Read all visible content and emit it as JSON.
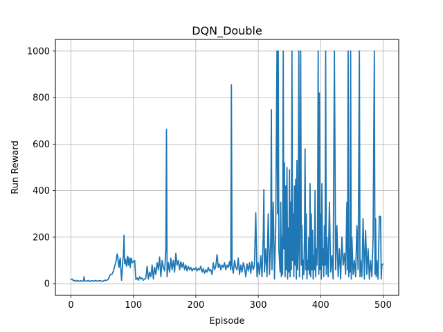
{
  "chart_data": {
    "type": "line",
    "title": "DQN_Double",
    "xlabel": "Episode",
    "ylabel": "Run Reward",
    "xlim": [
      -25,
      525
    ],
    "ylim": [
      -50,
      1050
    ],
    "x_ticks": [
      0,
      100,
      200,
      300,
      400,
      500
    ],
    "y_ticks": [
      0,
      200,
      400,
      600,
      800,
      1000
    ],
    "grid": true,
    "series": [
      {
        "color": "#1f77b4",
        "points": [
          [
            0,
            18
          ],
          [
            2,
            20
          ],
          [
            4,
            12
          ],
          [
            6,
            15
          ],
          [
            8,
            10
          ],
          [
            10,
            14
          ],
          [
            12,
            12
          ],
          [
            14,
            10
          ],
          [
            16,
            13
          ],
          [
            18,
            11
          ],
          [
            20,
            12
          ],
          [
            21,
            30
          ],
          [
            22,
            12
          ],
          [
            25,
            11
          ],
          [
            28,
            14
          ],
          [
            30,
            10
          ],
          [
            33,
            13
          ],
          [
            36,
            11
          ],
          [
            39,
            14
          ],
          [
            42,
            11
          ],
          [
            45,
            13
          ],
          [
            48,
            12
          ],
          [
            51,
            10
          ],
          [
            54,
            15
          ],
          [
            57,
            14
          ],
          [
            60,
            20
          ],
          [
            62,
            35
          ],
          [
            64,
            40
          ],
          [
            66,
            42
          ],
          [
            68,
            55
          ],
          [
            70,
            75
          ],
          [
            72,
            95
          ],
          [
            73,
            110
          ],
          [
            74,
            128
          ],
          [
            75,
            118
          ],
          [
            76,
            85
          ],
          [
            77,
            70
          ],
          [
            78,
            100
          ],
          [
            79,
            110
          ],
          [
            80,
            60
          ],
          [
            81,
            15
          ],
          [
            82,
            50
          ],
          [
            83,
            100
          ],
          [
            84,
            120
          ],
          [
            85,
            208
          ],
          [
            86,
            85
          ],
          [
            87,
            105
          ],
          [
            88,
            90
          ],
          [
            89,
            75
          ],
          [
            90,
            110
          ],
          [
            91,
            118
          ],
          [
            92,
            80
          ],
          [
            93,
            110
          ],
          [
            94,
            100
          ],
          [
            95,
            70
          ],
          [
            96,
            110
          ],
          [
            97,
            108
          ],
          [
            98,
            90
          ],
          [
            100,
            95
          ],
          [
            102,
            100
          ],
          [
            104,
            18
          ],
          [
            106,
            25
          ],
          [
            108,
            15
          ],
          [
            110,
            30
          ],
          [
            112,
            20
          ],
          [
            114,
            25
          ],
          [
            116,
            15
          ],
          [
            118,
            20
          ],
          [
            120,
            25
          ],
          [
            122,
            75
          ],
          [
            124,
            20
          ],
          [
            126,
            50
          ],
          [
            128,
            30
          ],
          [
            130,
            80
          ],
          [
            132,
            20
          ],
          [
            134,
            70
          ],
          [
            136,
            40
          ],
          [
            138,
            90
          ],
          [
            140,
            60
          ],
          [
            142,
            115
          ],
          [
            144,
            30
          ],
          [
            146,
            100
          ],
          [
            148,
            70
          ],
          [
            150,
            55
          ],
          [
            152,
            150
          ],
          [
            153,
            663
          ],
          [
            154,
            30
          ],
          [
            156,
            90
          ],
          [
            158,
            50
          ],
          [
            160,
            110
          ],
          [
            162,
            60
          ],
          [
            164,
            100
          ],
          [
            166,
            50
          ],
          [
            168,
            130
          ],
          [
            170,
            80
          ],
          [
            172,
            100
          ],
          [
            174,
            60
          ],
          [
            176,
            95
          ],
          [
            178,
            70
          ],
          [
            180,
            90
          ],
          [
            182,
            60
          ],
          [
            184,
            80
          ],
          [
            186,
            55
          ],
          [
            188,
            75
          ],
          [
            190,
            60
          ],
          [
            192,
            70
          ],
          [
            194,
            55
          ],
          [
            196,
            65
          ],
          [
            198,
            60
          ],
          [
            200,
            70
          ],
          [
            202,
            55
          ],
          [
            204,
            65
          ],
          [
            206,
            60
          ],
          [
            208,
            75
          ],
          [
            210,
            50
          ],
          [
            212,
            65
          ],
          [
            214,
            45
          ],
          [
            216,
            60
          ],
          [
            218,
            50
          ],
          [
            220,
            70
          ],
          [
            222,
            55
          ],
          [
            224,
            60
          ],
          [
            226,
            40
          ],
          [
            228,
            90
          ],
          [
            230,
            60
          ],
          [
            232,
            75
          ],
          [
            234,
            125
          ],
          [
            236,
            70
          ],
          [
            238,
            85
          ],
          [
            240,
            60
          ],
          [
            242,
            80
          ],
          [
            244,
            70
          ],
          [
            246,
            90
          ],
          [
            248,
            60
          ],
          [
            250,
            80
          ],
          [
            252,
            70
          ],
          [
            254,
            95
          ],
          [
            256,
            60
          ],
          [
            257,
            855
          ],
          [
            258,
            80
          ],
          [
            260,
            45
          ],
          [
            262,
            100
          ],
          [
            264,
            70
          ],
          [
            266,
            60
          ],
          [
            268,
            110
          ],
          [
            270,
            40
          ],
          [
            272,
            80
          ],
          [
            274,
            50
          ],
          [
            276,
            90
          ],
          [
            278,
            70
          ],
          [
            280,
            30
          ],
          [
            282,
            85
          ],
          [
            284,
            55
          ],
          [
            286,
            90
          ],
          [
            288,
            45
          ],
          [
            290,
            95
          ],
          [
            292,
            60
          ],
          [
            294,
            80
          ],
          [
            296,
            305
          ],
          [
            298,
            30
          ],
          [
            300,
            90
          ],
          [
            302,
            40
          ],
          [
            304,
            120
          ],
          [
            306,
            30
          ],
          [
            308,
            200
          ],
          [
            309,
            405
          ],
          [
            310,
            50
          ],
          [
            312,
            150
          ],
          [
            314,
            30
          ],
          [
            316,
            300
          ],
          [
            318,
            40
          ],
          [
            320,
            180
          ],
          [
            321,
            748
          ],
          [
            322,
            60
          ],
          [
            324,
            350
          ],
          [
            326,
            20
          ],
          [
            328,
            250
          ],
          [
            330,
            1000
          ],
          [
            331,
            300
          ],
          [
            332,
            1000
          ],
          [
            333,
            150
          ],
          [
            334,
            100
          ],
          [
            335,
            50
          ],
          [
            336,
            350
          ],
          [
            337,
            30
          ],
          [
            338,
            200
          ],
          [
            339,
            40
          ],
          [
            340,
            1000
          ],
          [
            341,
            150
          ],
          [
            342,
            520
          ],
          [
            343,
            30
          ],
          [
            344,
            420
          ],
          [
            345,
            60
          ],
          [
            346,
            500
          ],
          [
            347,
            20
          ],
          [
            348,
            240
          ],
          [
            349,
            50
          ],
          [
            350,
            490
          ],
          [
            351,
            30
          ],
          [
            352,
            350
          ],
          [
            353,
            60
          ],
          [
            354,
            1000
          ],
          [
            355,
            100
          ],
          [
            356,
            300
          ],
          [
            357,
            30
          ],
          [
            358,
            420
          ],
          [
            359,
            80
          ],
          [
            360,
            450
          ],
          [
            361,
            20
          ],
          [
            362,
            530
          ],
          [
            363,
            60
          ],
          [
            364,
            150
          ],
          [
            365,
            1000
          ],
          [
            366,
            30
          ],
          [
            367,
            280
          ],
          [
            368,
            1000
          ],
          [
            369,
            80
          ],
          [
            370,
            250
          ],
          [
            371,
            20
          ],
          [
            372,
            100
          ],
          [
            373,
            40
          ],
          [
            374,
            190
          ],
          [
            375,
            580
          ],
          [
            376,
            60
          ],
          [
            377,
            300
          ],
          [
            378,
            20
          ],
          [
            379,
            100
          ],
          [
            380,
            60
          ],
          [
            381,
            200
          ],
          [
            382,
            40
          ],
          [
            383,
            430
          ],
          [
            384,
            30
          ],
          [
            385,
            300
          ],
          [
            386,
            60
          ],
          [
            387,
            230
          ],
          [
            388,
            20
          ],
          [
            389,
            120
          ],
          [
            390,
            60
          ],
          [
            391,
            400
          ],
          [
            392,
            30
          ],
          [
            393,
            150
          ],
          [
            394,
            80
          ],
          [
            395,
            200
          ],
          [
            396,
            1000
          ],
          [
            397,
            40
          ],
          [
            398,
            820
          ],
          [
            399,
            60
          ],
          [
            400,
            300
          ],
          [
            401,
            20
          ],
          [
            402,
            430
          ],
          [
            403,
            80
          ],
          [
            404,
            150
          ],
          [
            405,
            30
          ],
          [
            406,
            250
          ],
          [
            407,
            80
          ],
          [
            408,
            1000
          ],
          [
            409,
            40
          ],
          [
            410,
            200
          ],
          [
            412,
            30
          ],
          [
            414,
            350
          ],
          [
            416,
            50
          ],
          [
            418,
            120
          ],
          [
            420,
            20
          ],
          [
            422,
            1000
          ],
          [
            424,
            60
          ],
          [
            426,
            250
          ],
          [
            428,
            30
          ],
          [
            430,
            150
          ],
          [
            432,
            20
          ],
          [
            434,
            200
          ],
          [
            436,
            80
          ],
          [
            438,
            130
          ],
          [
            440,
            40
          ],
          [
            442,
            350
          ],
          [
            443,
            60
          ],
          [
            444,
            1000
          ],
          [
            445,
            30
          ],
          [
            446,
            150
          ],
          [
            447,
            50
          ],
          [
            448,
            1000
          ],
          [
            449,
            20
          ],
          [
            450,
            200
          ],
          [
            452,
            40
          ],
          [
            454,
            100
          ],
          [
            456,
            30
          ],
          [
            458,
            250
          ],
          [
            460,
            60
          ],
          [
            462,
            1000
          ],
          [
            463,
            30
          ],
          [
            464,
            100
          ],
          [
            466,
            30
          ],
          [
            468,
            280
          ],
          [
            470,
            20
          ],
          [
            472,
            230
          ],
          [
            474,
            40
          ],
          [
            476,
            150
          ],
          [
            478,
            20
          ],
          [
            480,
            100
          ],
          [
            482,
            30
          ],
          [
            484,
            200
          ],
          [
            486,
            1000
          ],
          [
            487,
            40
          ],
          [
            488,
            280
          ],
          [
            489,
            30
          ],
          [
            490,
            100
          ],
          [
            492,
            20
          ],
          [
            494,
            290
          ],
          [
            496,
            290
          ],
          [
            497,
            20
          ],
          [
            498,
            80
          ],
          [
            500,
            85
          ]
        ]
      }
    ]
  }
}
